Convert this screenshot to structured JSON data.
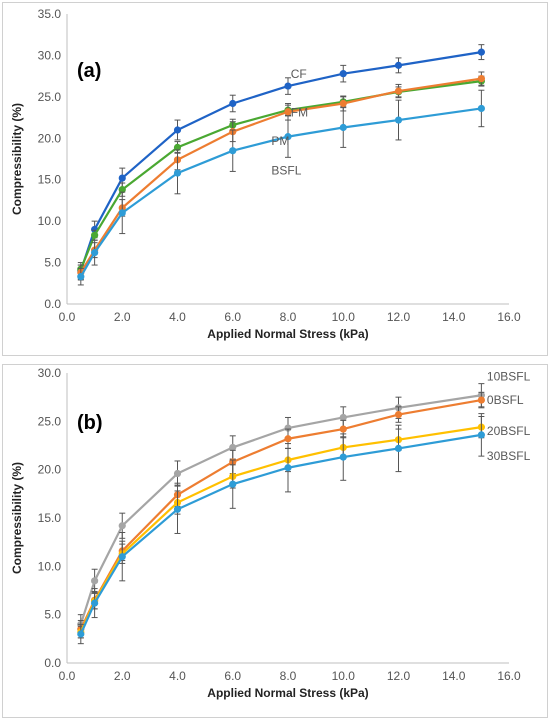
{
  "chart_data": [
    {
      "type": "line",
      "panel_label": "(a)",
      "xlabel": "Applied Normal Stress (kPa)",
      "ylabel": "Compressibility (%)",
      "xlim": [
        0,
        16
      ],
      "ylim": [
        0,
        35
      ],
      "x_ticks": [
        "0.0",
        "2.0",
        "4.0",
        "6.0",
        "8.0",
        "10.0",
        "12.0",
        "14.0",
        "16.0"
      ],
      "y_ticks": [
        "0.0",
        "5.0",
        "10.0",
        "15.0",
        "20.0",
        "25.0",
        "30.0",
        "35.0"
      ],
      "grid": false,
      "x": [
        0.5,
        1,
        2,
        4,
        6,
        8,
        10,
        12,
        15
      ],
      "series": [
        {
          "name": "CF",
          "color": "#1f63c6",
          "values": [
            4.0,
            9.0,
            15.2,
            21.0,
            24.2,
            26.3,
            27.8,
            28.8,
            30.4
          ],
          "errors": [
            1.0,
            1.0,
            1.2,
            1.2,
            1.0,
            1.0,
            1.0,
            0.9,
            0.9
          ]
        },
        {
          "name": "FM",
          "color": "#4aa832",
          "values": [
            4.2,
            8.3,
            13.8,
            18.9,
            21.6,
            23.4,
            24.4,
            25.6,
            26.9
          ],
          "errors": [
            0.5,
            0.6,
            0.8,
            0.7,
            0.7,
            0.6,
            0.6,
            0.6,
            0.6
          ]
        },
        {
          "name": "PM",
          "color": "#ed7d31",
          "values": [
            3.8,
            6.5,
            11.6,
            17.4,
            20.8,
            23.2,
            24.2,
            25.7,
            27.2
          ],
          "errors": [
            0.9,
            0.9,
            1.0,
            1.2,
            1.2,
            1.0,
            0.9,
            0.8,
            0.8
          ]
        },
        {
          "name": "BSFL",
          "color": "#2e9cd6",
          "values": [
            3.3,
            6.2,
            11.0,
            15.8,
            18.5,
            20.2,
            21.3,
            22.2,
            23.6
          ],
          "errors": [
            1.0,
            1.5,
            2.5,
            2.5,
            2.5,
            2.5,
            2.4,
            2.4,
            2.2
          ]
        }
      ],
      "labels": [
        {
          "text": "CF",
          "x": 8.1,
          "y": 27.3
        },
        {
          "text": "FM",
          "x": 8.1,
          "y": 22.6
        },
        {
          "text": "PM",
          "x": 7.4,
          "y": 19.2
        },
        {
          "text": "BSFL",
          "x": 7.4,
          "y": 15.6
        }
      ]
    },
    {
      "type": "line",
      "panel_label": "(b)",
      "xlabel": "Applied Normal Stress (kPa)",
      "ylabel": "Compressibility (%)",
      "xlim": [
        0,
        16
      ],
      "ylim": [
        0,
        30
      ],
      "x_ticks": [
        "0.0",
        "2.0",
        "4.0",
        "6.0",
        "8.0",
        "10.0",
        "12.0",
        "14.0",
        "16.0"
      ],
      "y_ticks": [
        "0.0",
        "5.0",
        "10.0",
        "15.0",
        "20.0",
        "25.0",
        "30.0"
      ],
      "grid": false,
      "x": [
        0.5,
        1,
        2,
        4,
        6,
        8,
        10,
        12,
        15
      ],
      "series": [
        {
          "name": "10BSFL",
          "color": "#a5a5a5",
          "values": [
            4.0,
            8.5,
            14.2,
            19.6,
            22.3,
            24.3,
            25.4,
            26.4,
            27.7
          ],
          "errors": [
            1.0,
            1.2,
            1.3,
            1.3,
            1.2,
            1.1,
            1.1,
            1.1,
            1.2
          ]
        },
        {
          "name": "0BSFL",
          "color": "#ed7d31",
          "values": [
            3.5,
            6.5,
            11.6,
            17.4,
            20.8,
            23.2,
            24.2,
            25.7,
            27.2
          ],
          "errors": [
            0.9,
            0.9,
            1.0,
            1.2,
            1.2,
            1.0,
            0.9,
            0.8,
            0.8
          ]
        },
        {
          "name": "20BSFL",
          "color": "#ffc000",
          "values": [
            3.2,
            6.4,
            11.3,
            16.6,
            19.3,
            21.0,
            22.3,
            23.1,
            24.4
          ],
          "errors": [
            0.6,
            0.8,
            1.0,
            1.2,
            1.2,
            1.2,
            1.1,
            1.1,
            1.1
          ]
        },
        {
          "name": "30BSFL",
          "color": "#2e9cd6",
          "values": [
            3.0,
            6.2,
            11.0,
            15.9,
            18.5,
            20.2,
            21.3,
            22.2,
            23.6
          ],
          "errors": [
            1.0,
            1.5,
            2.5,
            2.5,
            2.5,
            2.5,
            2.4,
            2.4,
            2.2
          ]
        }
      ],
      "labels": [
        {
          "text": "10BSFL",
          "x": 15.2,
          "y": 29.2
        },
        {
          "text": "0BSFL",
          "x": 15.2,
          "y": 26.8
        },
        {
          "text": "20BSFL",
          "x": 15.2,
          "y": 23.6
        },
        {
          "text": "30BSFL",
          "x": 15.2,
          "y": 21.0
        }
      ]
    }
  ]
}
